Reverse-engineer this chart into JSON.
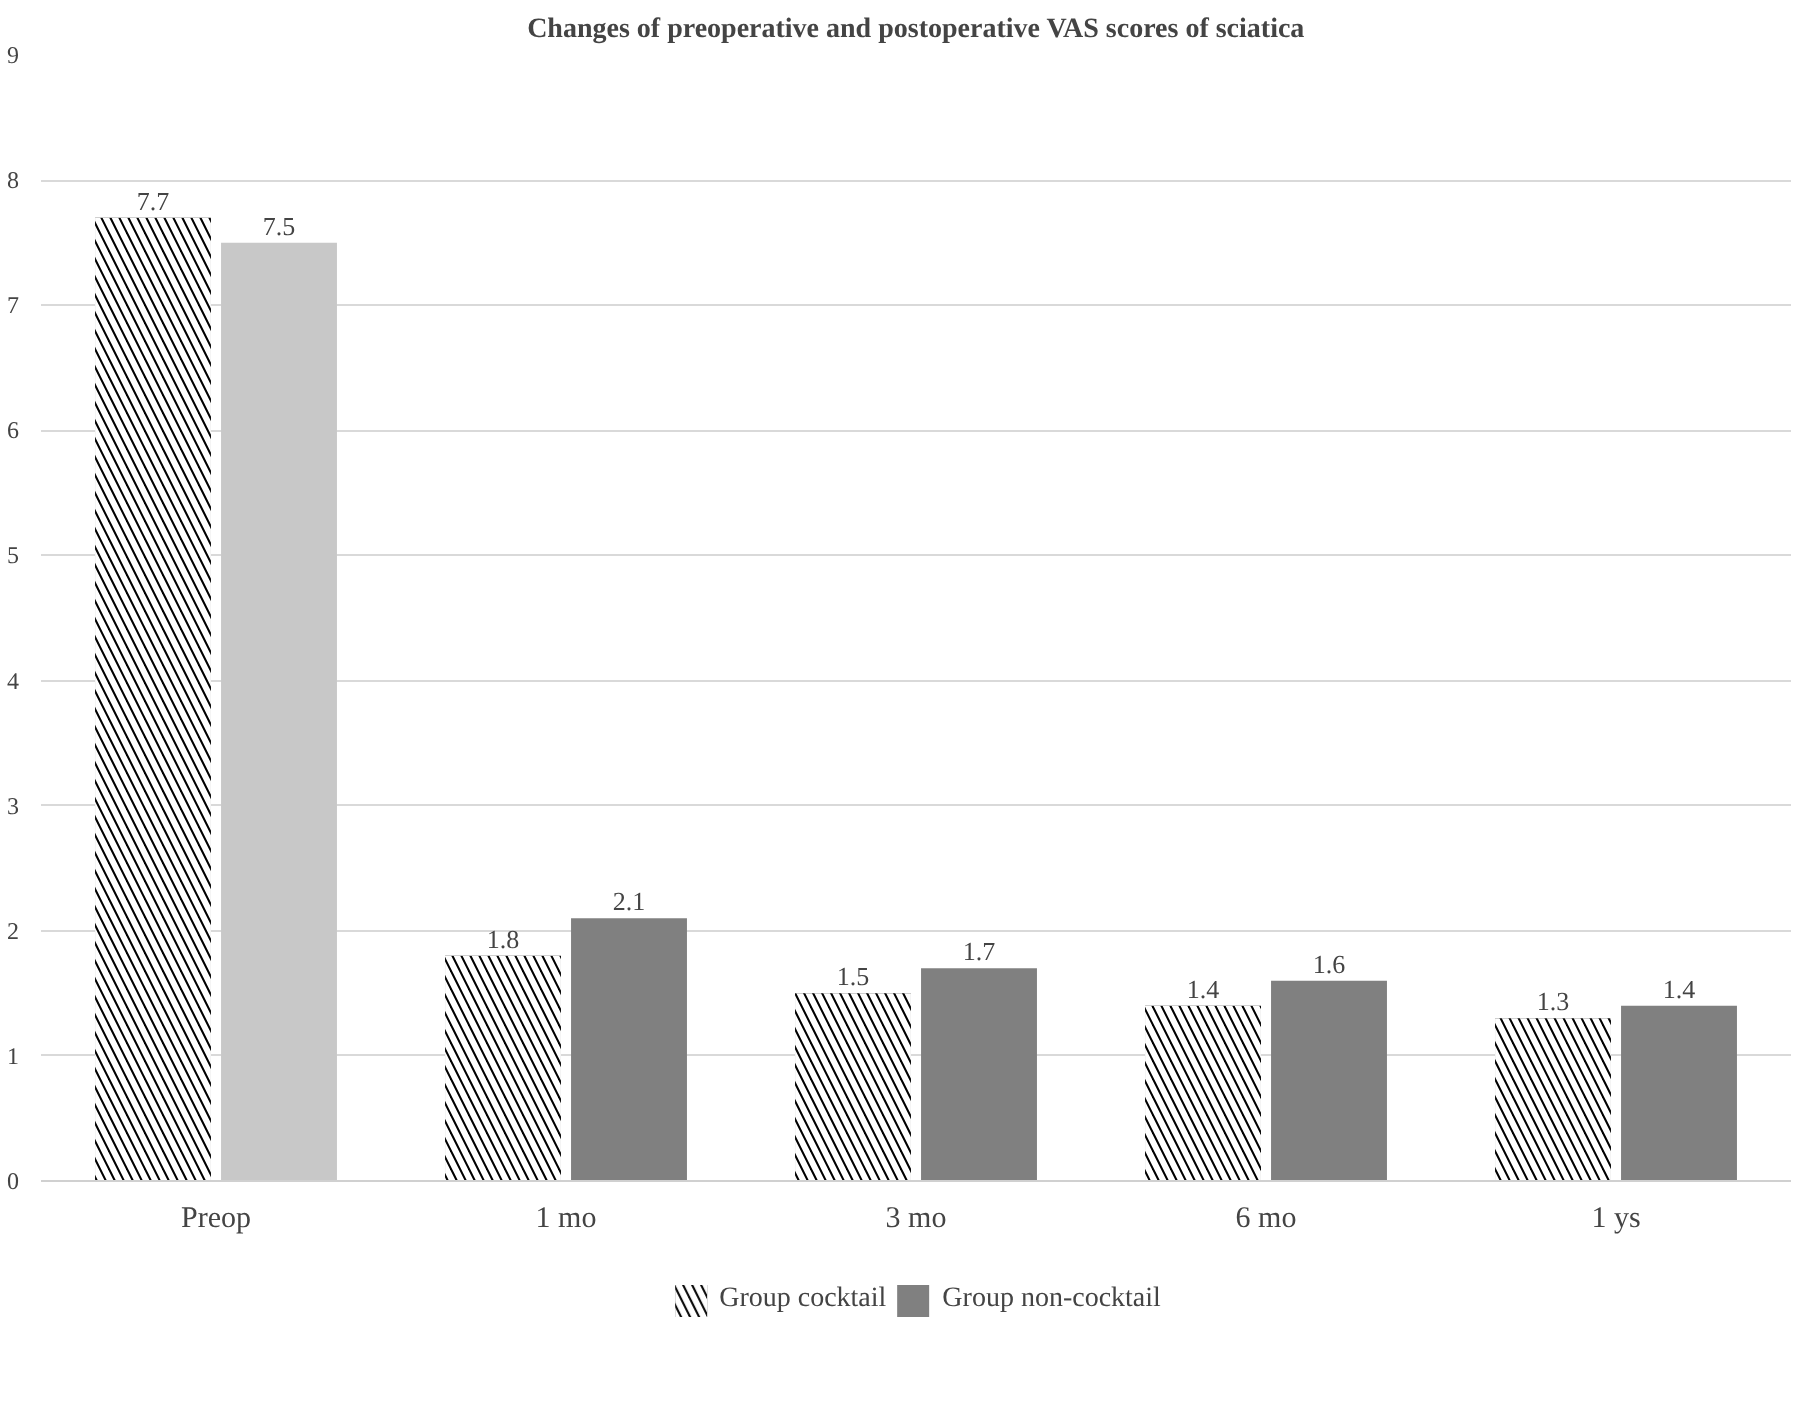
{
  "chart_data": {
    "type": "bar",
    "title": "Changes of preoperative and postoperative VAS scores of sciatica",
    "categories": [
      "Preop",
      "1 mo",
      "3 mo",
      "6 mo",
      "1 ys"
    ],
    "series": [
      {
        "name": "Group cocktail",
        "color": "#000000",
        "values": [
          7.7,
          1.8,
          1.5,
          1.4,
          1.3
        ]
      },
      {
        "name": "Group non-cocktail",
        "color": "#808080",
        "colors": [
          "#c8c8c8",
          "#808080",
          "#808080",
          "#808080",
          "#808080"
        ],
        "values": [
          7.5,
          2.1,
          1.7,
          1.6,
          1.4
        ]
      }
    ],
    "ylim": [
      0,
      9
    ],
    "yticks": [
      0,
      1,
      2,
      3,
      4,
      5,
      6,
      7,
      8,
      9
    ],
    "grid": "y",
    "legend": "bottom",
    "data_labels": true
  }
}
